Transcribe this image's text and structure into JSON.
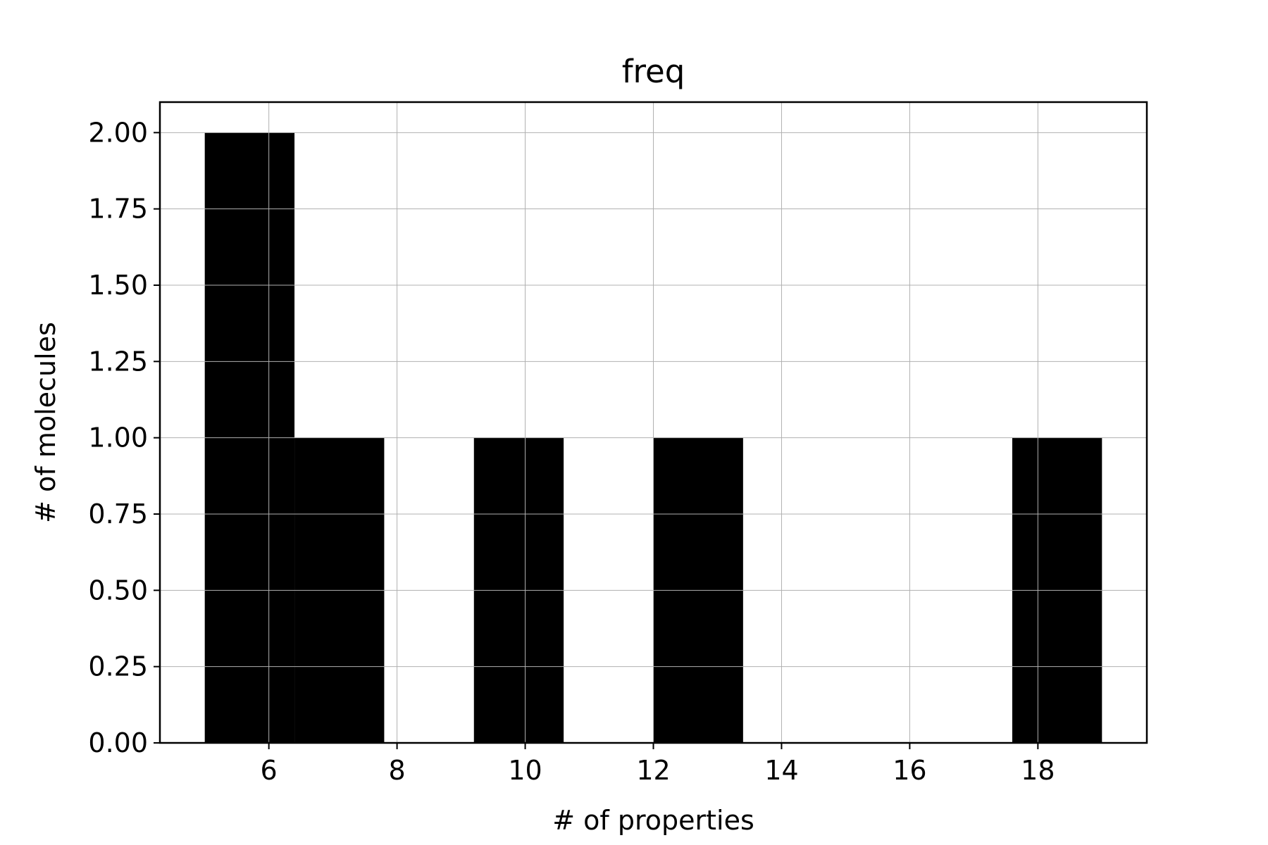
{
  "chart_data": {
    "type": "bar",
    "title": "freq",
    "xlabel": "# of properties",
    "ylabel": "# of molecules",
    "xlim": [
      4.3,
      19.7
    ],
    "ylim": [
      0,
      2.1
    ],
    "grid": true,
    "bar_color": "#000000",
    "grid_color": "#b0b0b0",
    "x_ticks": [
      6,
      8,
      10,
      12,
      14,
      16,
      18
    ],
    "x_tick_labels": [
      "6",
      "8",
      "10",
      "12",
      "14",
      "16",
      "18"
    ],
    "y_ticks": [
      0,
      0.25,
      0.5,
      0.75,
      1.0,
      1.25,
      1.5,
      1.75,
      2.0
    ],
    "y_tick_labels": [
      "0.00",
      "0.25",
      "0.50",
      "0.75",
      "1.00",
      "1.25",
      "1.50",
      "1.75",
      "2.00"
    ],
    "bins": [
      {
        "x0": 5.0,
        "x1": 6.4,
        "value": 2
      },
      {
        "x0": 6.4,
        "x1": 7.8,
        "value": 1
      },
      {
        "x0": 7.8,
        "x1": 9.2,
        "value": 0
      },
      {
        "x0": 9.2,
        "x1": 10.6,
        "value": 1
      },
      {
        "x0": 10.6,
        "x1": 12.0,
        "value": 0
      },
      {
        "x0": 12.0,
        "x1": 13.4,
        "value": 1
      },
      {
        "x0": 13.4,
        "x1": 14.8,
        "value": 0
      },
      {
        "x0": 14.8,
        "x1": 16.2,
        "value": 0
      },
      {
        "x0": 16.2,
        "x1": 17.6,
        "value": 0
      },
      {
        "x0": 17.6,
        "x1": 19.0,
        "value": 1
      }
    ]
  }
}
